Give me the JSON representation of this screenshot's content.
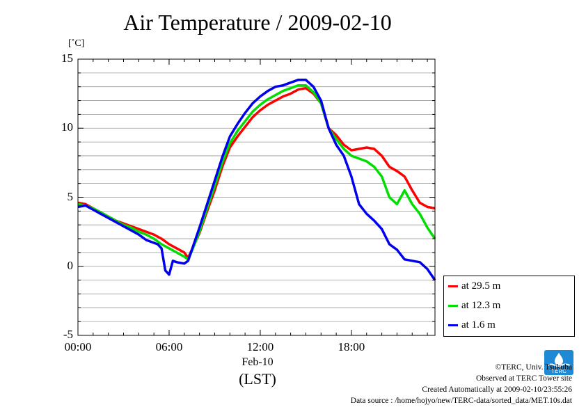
{
  "chart_data": {
    "type": "line",
    "title": "Air Temperature / 2009-02-10",
    "ylabel": "[˚C]",
    "xlabel": "(LST)",
    "date_label": "Feb-10",
    "ylim": [
      -5,
      15
    ],
    "xlim": [
      0,
      23.5
    ],
    "y_ticks": [
      {
        "v": 15,
        "label": "15"
      },
      {
        "v": 10,
        "label": "10"
      },
      {
        "v": 5,
        "label": "5"
      },
      {
        "v": 0,
        "label": "0"
      },
      {
        "v": -5,
        "label": "-5"
      }
    ],
    "x_ticks": [
      {
        "v": 0,
        "label": "00:00"
      },
      {
        "v": 6,
        "label": "06:00"
      },
      {
        "v": 12,
        "label": "12:00"
      },
      {
        "v": 18,
        "label": "18:00"
      }
    ],
    "grid": true,
    "legend_position": "lower-right, outside plot",
    "series": [
      {
        "name": "at 29.5 m",
        "color": "#ff0000",
        "x": [
          0,
          0.5,
          1,
          1.5,
          2,
          2.5,
          3,
          3.5,
          4,
          4.5,
          5,
          5.5,
          6,
          6.5,
          7,
          7.25,
          7.5,
          8,
          8.5,
          9,
          9.5,
          10,
          10.5,
          11,
          11.5,
          12,
          12.5,
          13,
          13.5,
          14,
          14.5,
          15,
          15.5,
          16,
          16.5,
          17,
          17.5,
          18,
          18.5,
          19,
          19.5,
          20,
          20.5,
          21,
          21.5,
          22,
          22.5,
          23,
          23.5
        ],
        "y": [
          4.6,
          4.5,
          4.2,
          3.9,
          3.6,
          3.3,
          3.1,
          2.9,
          2.7,
          2.5,
          2.3,
          2.0,
          1.6,
          1.3,
          1.0,
          0.6,
          1.2,
          2.4,
          4.0,
          5.5,
          7.2,
          8.6,
          9.4,
          10.1,
          10.8,
          11.3,
          11.7,
          12.0,
          12.3,
          12.5,
          12.8,
          12.9,
          12.5,
          11.8,
          10.0,
          9.5,
          8.8,
          8.4,
          8.5,
          8.6,
          8.5,
          8.0,
          7.2,
          6.9,
          6.5,
          5.5,
          4.6,
          4.3,
          4.2
        ]
      },
      {
        "name": "at 12.3 m",
        "color": "#00dd00",
        "x": [
          0,
          0.5,
          1,
          1.5,
          2,
          2.5,
          3,
          3.5,
          4,
          4.5,
          5,
          5.5,
          6,
          6.5,
          7,
          7.25,
          7.5,
          8,
          8.5,
          9,
          9.5,
          10,
          10.5,
          11,
          11.5,
          12,
          12.5,
          13,
          13.5,
          14,
          14.5,
          15,
          15.5,
          16,
          16.5,
          17,
          17.5,
          18,
          18.5,
          19,
          19.5,
          20,
          20.5,
          21,
          21.5,
          22,
          22.5,
          23,
          23.5
        ],
        "y": [
          4.5,
          4.4,
          4.2,
          3.9,
          3.6,
          3.3,
          3.0,
          2.8,
          2.5,
          2.3,
          2.0,
          1.6,
          1.3,
          1.0,
          0.7,
          0.5,
          1.1,
          2.5,
          4.2,
          5.8,
          7.5,
          8.9,
          9.8,
          10.5,
          11.2,
          11.7,
          12.1,
          12.4,
          12.7,
          12.9,
          13.1,
          13.1,
          12.6,
          11.8,
          10.0,
          9.2,
          8.5,
          8.0,
          7.8,
          7.6,
          7.2,
          6.5,
          5.0,
          4.5,
          5.5,
          4.5,
          3.8,
          2.8,
          2.0
        ]
      },
      {
        "name": "at 1.6 m",
        "color": "#0000ee",
        "x": [
          0,
          0.5,
          1,
          1.5,
          2,
          2.5,
          3,
          3.5,
          4,
          4.5,
          5,
          5.25,
          5.5,
          5.75,
          6,
          6.25,
          6.5,
          7,
          7.25,
          7.5,
          8,
          8.5,
          9,
          9.5,
          10,
          10.5,
          11,
          11.5,
          12,
          12.5,
          13,
          13.5,
          14,
          14.5,
          15,
          15.5,
          16,
          16.5,
          17,
          17.5,
          18,
          18.5,
          19,
          19.5,
          20,
          20.5,
          21,
          21.5,
          22,
          22.5,
          23,
          23.5
        ],
        "y": [
          4.3,
          4.4,
          4.1,
          3.8,
          3.5,
          3.2,
          2.9,
          2.6,
          2.3,
          1.9,
          1.7,
          1.6,
          1.3,
          -0.3,
          -0.6,
          0.4,
          0.3,
          0.2,
          0.4,
          1.2,
          2.8,
          4.5,
          6.2,
          7.9,
          9.4,
          10.3,
          11.1,
          11.8,
          12.3,
          12.7,
          13.0,
          13.1,
          13.3,
          13.5,
          13.5,
          13.0,
          12.0,
          10.0,
          8.8,
          8.0,
          6.5,
          4.5,
          3.8,
          3.3,
          2.7,
          1.6,
          1.2,
          0.5,
          0.4,
          0.3,
          -0.2,
          -1.0
        ]
      }
    ]
  },
  "credits": {
    "copyright": "©TERC, Univ. Tsukuba",
    "observed": "Observed at TERC Tower site",
    "created": "Created Automatically at 2009-02-10/23:55:26",
    "source": "Data source : /home/hojyo/new/TERC-data/sorted_data/MET.10s.dat"
  },
  "logo": {
    "text": "TERC",
    "color": "#1e8ad6"
  }
}
